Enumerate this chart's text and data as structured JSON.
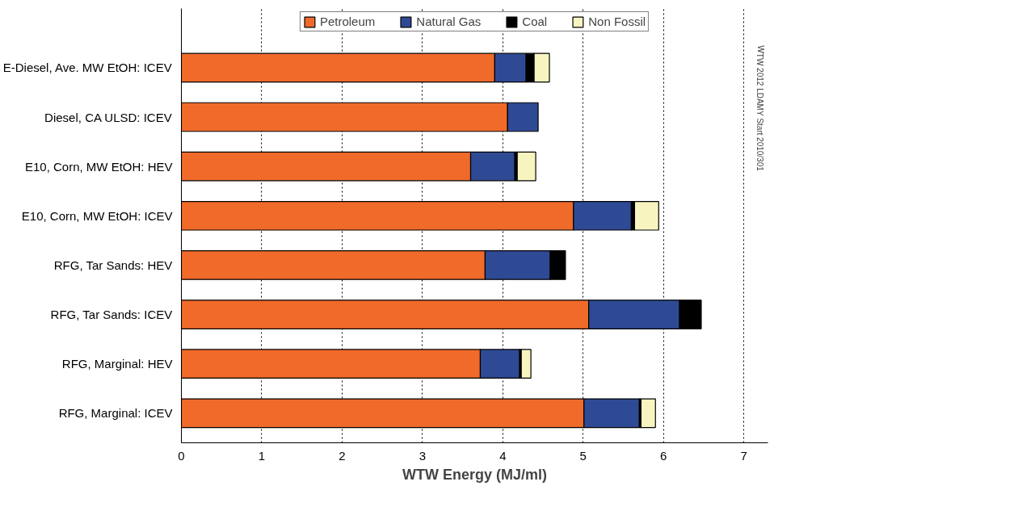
{
  "chart_data": {
    "type": "bar",
    "orientation": "horizontal",
    "stacked": true,
    "xlabel": "WTW Energy (MJ/ml)",
    "categories": [
      "E-Diesel, Ave. MW EtOH: ICEV",
      "Diesel, CA ULSD: ICEV",
      "E10, Corn, MW EtOH: HEV",
      "E10, Corn, MW EtOH: ICEV",
      "RFG, Tar Sands: HEV",
      "RFG, Tar Sands: ICEV",
      "RFG, Marginal: HEV",
      "RFG, Marginal: ICEV"
    ],
    "series": [
      {
        "name": "Petroleum",
        "color": "#f06a2a",
        "values": [
          3.9,
          4.06,
          3.6,
          4.88,
          3.78,
          5.07,
          3.72,
          5.01
        ]
      },
      {
        "name": "Natural Gas",
        "color": "#2f4a94",
        "values": [
          0.39,
          0.38,
          0.55,
          0.72,
          0.81,
          1.13,
          0.49,
          0.69
        ]
      },
      {
        "name": "Coal",
        "color": "#000000",
        "values": [
          0.1,
          0,
          0.03,
          0.04,
          0.19,
          0.27,
          0.02,
          0.02
        ]
      },
      {
        "name": "Non Fossil",
        "color": "#f7f4c0",
        "values": [
          0.19,
          0,
          0.23,
          0.3,
          0,
          0,
          0.12,
          0.18
        ]
      }
    ],
    "xlim": [
      0,
      7.3
    ],
    "xticks": [
      0,
      1,
      2,
      3,
      4,
      5,
      6,
      7
    ],
    "grid": "x",
    "legend": "top",
    "annotations": [
      "WTW 2012 LDAMY Start 2010/301"
    ]
  }
}
